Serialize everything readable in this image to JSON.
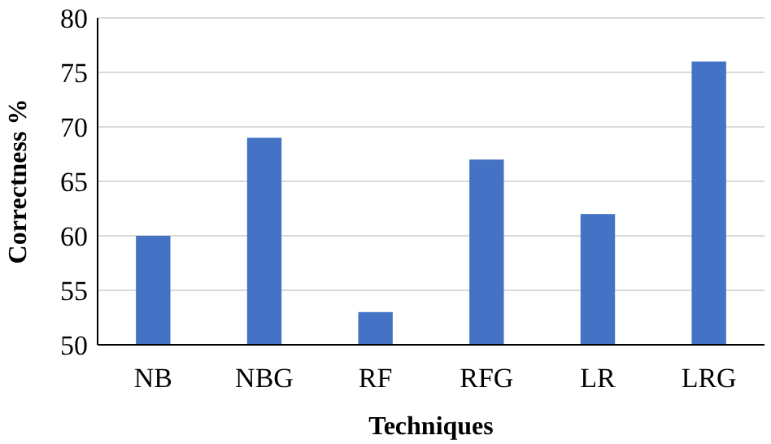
{
  "chart_data": {
    "type": "bar",
    "xlabel": "Techniques",
    "ylabel": "Correctness %",
    "categories": [
      "NB",
      "NBG",
      "RF",
      "RFG",
      "LR",
      "LRG"
    ],
    "values": [
      60,
      69,
      53,
      67,
      62,
      76
    ],
    "color": "#4472c4",
    "ylim": [
      50,
      80
    ],
    "yticks": [
      50,
      55,
      60,
      65,
      70,
      75,
      80
    ],
    "grid": "y"
  }
}
